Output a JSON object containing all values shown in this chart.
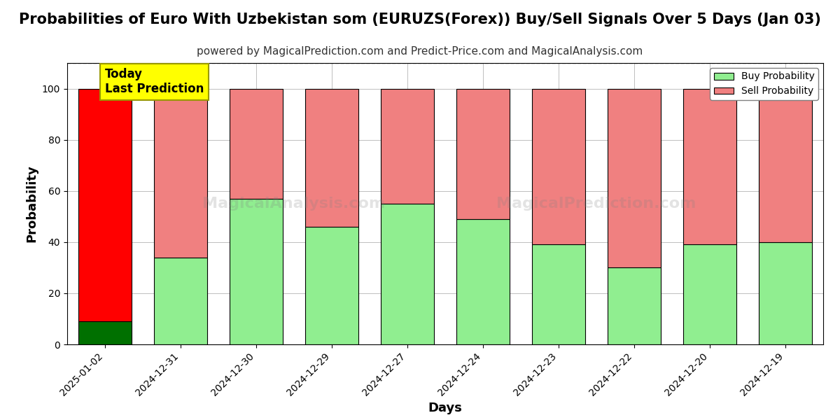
{
  "title": "Probabilities of Euro With Uzbekistan som (EURUZS(Forex)) Buy/Sell Signals Over 5 Days (Jan 03)",
  "subtitle": "powered by MagicalPrediction.com and Predict-Price.com and MagicalAnalysis.com",
  "xlabel": "Days",
  "ylabel": "Probability",
  "categories": [
    "2025-01-02",
    "2024-12-31",
    "2024-12-30",
    "2024-12-29",
    "2024-12-27",
    "2024-12-24",
    "2024-12-23",
    "2024-12-22",
    "2024-12-20",
    "2024-12-19"
  ],
  "buy_values": [
    9,
    34,
    57,
    46,
    55,
    49,
    39,
    30,
    39,
    40
  ],
  "sell_values": [
    91,
    66,
    43,
    54,
    45,
    51,
    61,
    70,
    61,
    60
  ],
  "buy_color_first": "#007000",
  "sell_color_first": "#ff0000",
  "buy_color_rest": "#90ee90",
  "sell_color_rest": "#f08080",
  "bar_edgecolor": "#000000",
  "ylim": [
    0,
    110
  ],
  "dashed_line_y": 110,
  "annotation_text": "Today\nLast Prediction",
  "annotation_bg": "#ffff00",
  "watermark1": "MagicalAnalysis.com",
  "watermark2": "MagicalPrediction.com",
  "legend_buy": "Buy Probability",
  "legend_sell": "Sell Probability",
  "title_fontsize": 15,
  "subtitle_fontsize": 11,
  "axis_label_fontsize": 13,
  "tick_fontsize": 10,
  "figsize": [
    12.0,
    6.0
  ],
  "dpi": 100
}
